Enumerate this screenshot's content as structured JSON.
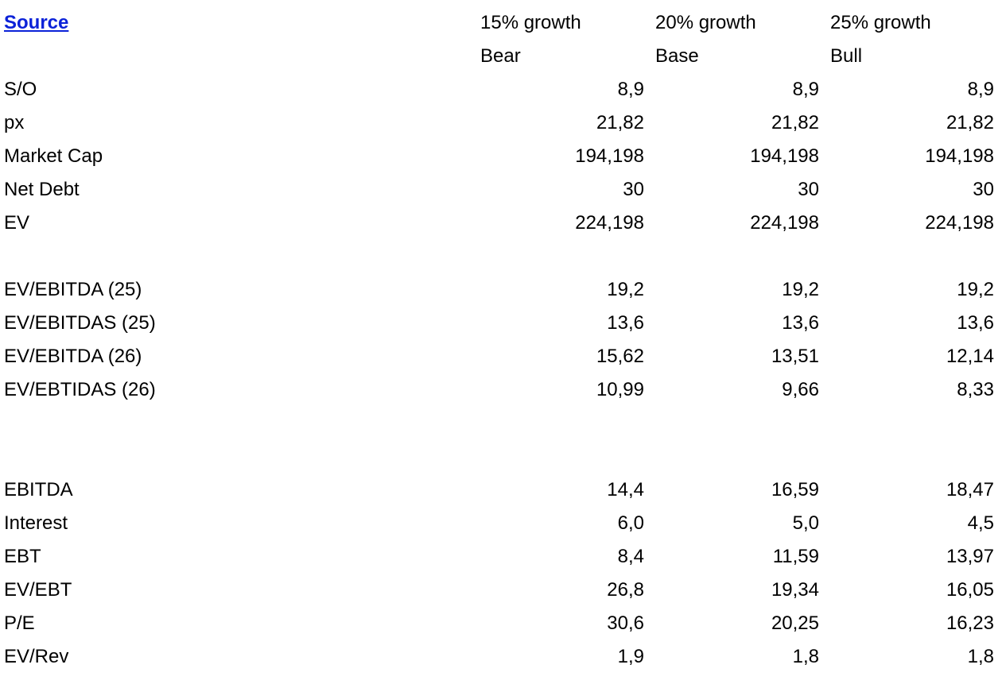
{
  "source_link": "Source",
  "scenarios": [
    {
      "growth": "15% growth",
      "case": "Bear"
    },
    {
      "growth": "20% growth",
      "case": "Base"
    },
    {
      "growth": "25% growth",
      "case": "Bull"
    }
  ],
  "rows": [
    {
      "label": "S/O",
      "values": [
        "8,9",
        "8,9",
        "8,9"
      ]
    },
    {
      "label": "px",
      "values": [
        "21,82",
        "21,82",
        "21,82"
      ]
    },
    {
      "label": "Market Cap",
      "values": [
        "194,198",
        "194,198",
        "194,198"
      ]
    },
    {
      "label": "Net Debt",
      "values": [
        "30",
        "30",
        "30"
      ]
    },
    {
      "label": "EV",
      "values": [
        "224,198",
        "224,198",
        "224,198"
      ]
    },
    {
      "label": "",
      "values": [
        "",
        "",
        ""
      ]
    },
    {
      "label": "EV/EBITDA (25)",
      "values": [
        "19,2",
        "19,2",
        "19,2"
      ]
    },
    {
      "label": "EV/EBITDAS (25)",
      "values": [
        "13,6",
        "13,6",
        "13,6"
      ]
    },
    {
      "label": "EV/EBITDA (26)",
      "values": [
        "15,62",
        "13,51",
        "12,14"
      ]
    },
    {
      "label": "EV/EBTIDAS (26)",
      "values": [
        "10,99",
        "9,66",
        "8,33"
      ]
    },
    {
      "label": "",
      "values": [
        "",
        "",
        ""
      ]
    },
    {
      "label": "",
      "values": [
        "",
        "",
        ""
      ]
    },
    {
      "label": "EBITDA",
      "values": [
        "14,4",
        "16,59",
        "18,47"
      ]
    },
    {
      "label": "Interest",
      "values": [
        "6,0",
        "5,0",
        "4,5"
      ]
    },
    {
      "label": "EBT",
      "values": [
        "8,4",
        "11,59",
        "13,97"
      ]
    },
    {
      "label": "EV/EBT",
      "values": [
        "26,8",
        "19,34",
        "16,05"
      ]
    },
    {
      "label": "P/E",
      "values": [
        "30,6",
        "20,25",
        "16,23"
      ]
    },
    {
      "label": "EV/Rev",
      "values": [
        "1,9",
        "1,8",
        "1,8"
      ]
    }
  ]
}
